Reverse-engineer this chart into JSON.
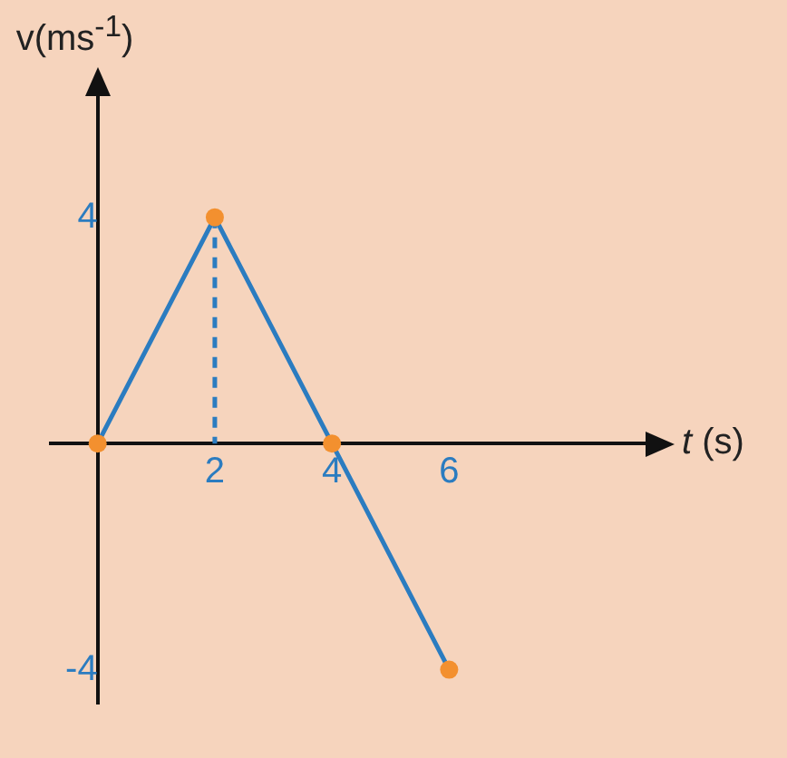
{
  "chart_data": {
    "type": "line",
    "xlabel": "t (s)",
    "ylabel": "v(ms$^{-1}$)",
    "xlim": [
      -0.8,
      9.6
    ],
    "ylim": [
      -4.6,
      6.4
    ],
    "xticks": [
      2,
      4,
      6
    ],
    "yticks": [
      4,
      -4
    ],
    "grid": false,
    "legend": false,
    "series": [
      {
        "type": "line",
        "x": [
          0,
          2,
          4,
          6
        ],
        "values": [
          0,
          4,
          0,
          -4
        ],
        "color": "#2b7cc0",
        "marker": "circle",
        "line_style": "solid"
      },
      {
        "type": "line",
        "x": [
          2,
          2
        ],
        "values": [
          4,
          0
        ],
        "color": "#2b7cc0",
        "marker": "none",
        "line_style": "dashed"
      }
    ]
  }
}
